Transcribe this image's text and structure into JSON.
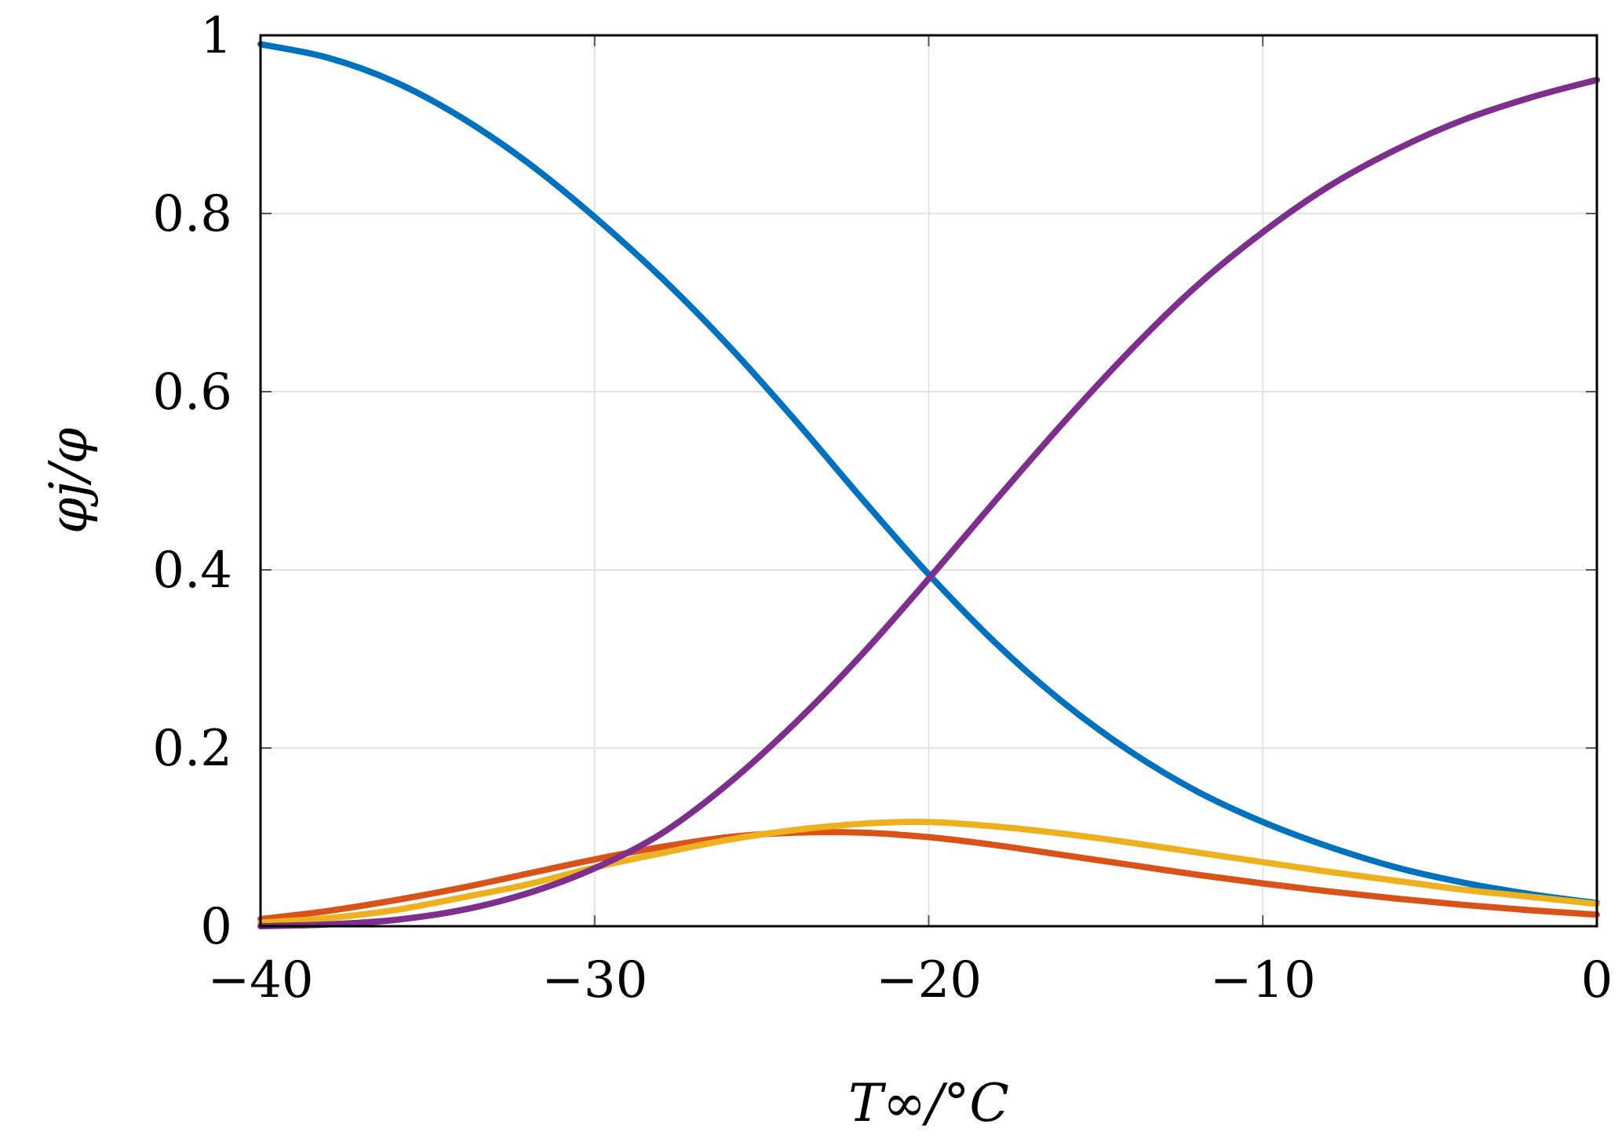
{
  "chart_data": {
    "type": "line",
    "xlabel": "T∞/°C",
    "ylabel": "φj/φ",
    "xlim": [
      -40,
      0
    ],
    "ylim": [
      0,
      1
    ],
    "grid": true,
    "x_ticks": [
      -40,
      -30,
      -20,
      -10,
      0
    ],
    "y_ticks": [
      0,
      0.2,
      0.4,
      0.6,
      0.8,
      1
    ],
    "x_tick_labels": [
      "−40",
      "−30",
      "−20",
      "−10",
      "0"
    ],
    "y_tick_labels": [
      "0",
      "0.2",
      "0.4",
      "0.6",
      "0.8",
      "1"
    ],
    "x": [
      -40,
      -38,
      -36,
      -34,
      -32,
      -30,
      -28,
      -26,
      -24,
      -22,
      -20,
      -18,
      -16,
      -14,
      -12,
      -10,
      -8,
      -6,
      -4,
      -2,
      0
    ],
    "series": [
      {
        "color": "#0072BD",
        "values": [
          0.99,
          0.975,
          0.948,
          0.908,
          0.857,
          0.796,
          0.728,
          0.652,
          0.568,
          0.48,
          0.395,
          0.318,
          0.252,
          0.197,
          0.152,
          0.117,
          0.089,
          0.066,
          0.049,
          0.036,
          0.026
        ]
      },
      {
        "color": "#D95319",
        "values": [
          0.008,
          0.017,
          0.029,
          0.043,
          0.059,
          0.075,
          0.089,
          0.1,
          0.105,
          0.105,
          0.1,
          0.091,
          0.08,
          0.069,
          0.058,
          0.048,
          0.039,
          0.031,
          0.024,
          0.018,
          0.013
        ]
      },
      {
        "color": "#EDB120",
        "values": [
          0.004,
          0.009,
          0.018,
          0.032,
          0.047,
          0.066,
          0.082,
          0.097,
          0.108,
          0.115,
          0.117,
          0.112,
          0.104,
          0.094,
          0.083,
          0.072,
          0.061,
          0.051,
          0.041,
          0.033,
          0.025
        ]
      },
      {
        "color": "#7E2F8E",
        "values": [
          0.0,
          0.002,
          0.007,
          0.018,
          0.037,
          0.065,
          0.104,
          0.16,
          0.228,
          0.305,
          0.39,
          0.478,
          0.564,
          0.645,
          0.718,
          0.779,
          0.831,
          0.872,
          0.905,
          0.93,
          0.95
        ]
      }
    ]
  }
}
